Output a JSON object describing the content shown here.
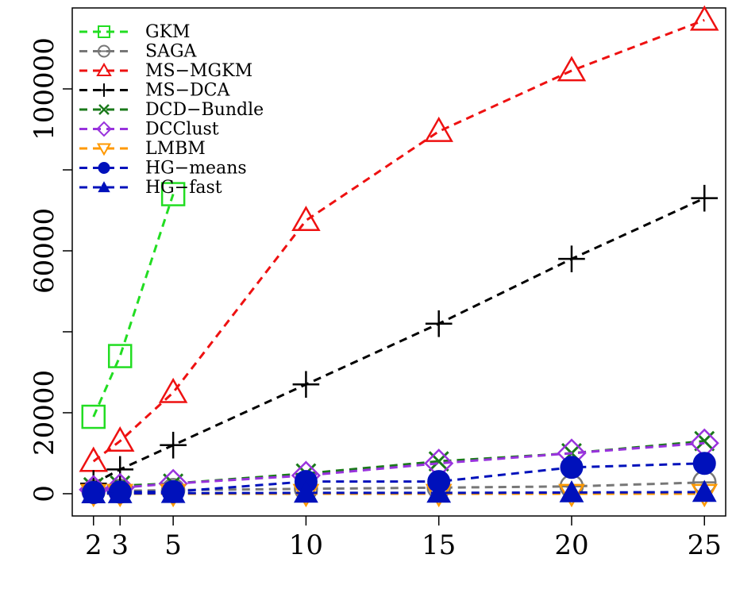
{
  "chart_data": {
    "type": "line",
    "title": "",
    "xlabel": "",
    "ylabel": "",
    "x_ticks": [
      2,
      3,
      5,
      10,
      15,
      20,
      25
    ],
    "y_ticks": [
      0,
      20000,
      60000,
      100000
    ],
    "xlim": [
      1.2,
      25.8
    ],
    "ylim": [
      -5500,
      120000
    ],
    "grid": false,
    "legend_position": "top-left",
    "series": [
      {
        "name": "GKM",
        "color": "#22dd22",
        "marker": "square",
        "x": [
          2,
          3,
          5
        ],
        "y": [
          19000,
          34000,
          74000
        ]
      },
      {
        "name": "SAGA",
        "color": "#777777",
        "marker": "circle-minus",
        "x": [
          2,
          3,
          5,
          10,
          15,
          20,
          25
        ],
        "y": [
          600,
          700,
          900,
          1200,
          1500,
          1800,
          2800
        ]
      },
      {
        "name": "MS−MGKM",
        "color": "#ee1111",
        "marker": "triangle",
        "x": [
          2,
          3,
          5,
          10,
          15,
          20,
          25
        ],
        "y": [
          8000,
          13000,
          25000,
          67500,
          89500,
          104500,
          117000
        ]
      },
      {
        "name": "MS−DCA",
        "color": "#000000",
        "marker": "plus",
        "x": [
          2,
          3,
          5,
          10,
          15,
          20,
          25
        ],
        "y": [
          2500,
          6000,
          12000,
          27000,
          42000,
          58000,
          73000
        ]
      },
      {
        "name": "DCD−Bundle",
        "color": "#1a7a1a",
        "marker": "cross",
        "x": [
          2,
          3,
          5,
          10,
          15,
          20,
          25
        ],
        "y": [
          1600,
          2000,
          2500,
          5000,
          8000,
          10000,
          13000
        ]
      },
      {
        "name": "DCClust",
        "color": "#9933dd",
        "marker": "diamond",
        "x": [
          2,
          3,
          5,
          10,
          15,
          20,
          25
        ],
        "y": [
          1000,
          1500,
          2500,
          4500,
          7500,
          10000,
          12500
        ]
      },
      {
        "name": "LMBM",
        "color": "#ff9900",
        "marker": "triangle-down",
        "x": [
          2,
          3,
          5,
          10,
          15,
          20,
          25
        ],
        "y": [
          0,
          0,
          0,
          0,
          0,
          0,
          0
        ]
      },
      {
        "name": "HG−means",
        "color": "#0011bb",
        "marker": "filled-circle",
        "x": [
          2,
          3,
          5,
          10,
          15,
          20,
          25
        ],
        "y": [
          300,
          400,
          500,
          3000,
          3000,
          6500,
          7500
        ]
      },
      {
        "name": "HG−fast",
        "color": "#0011bb",
        "marker": "filled-triangle",
        "x": [
          2,
          3,
          5,
          10,
          15,
          20,
          25
        ],
        "y": [
          50,
          80,
          120,
          200,
          200,
          300,
          400
        ]
      }
    ]
  }
}
